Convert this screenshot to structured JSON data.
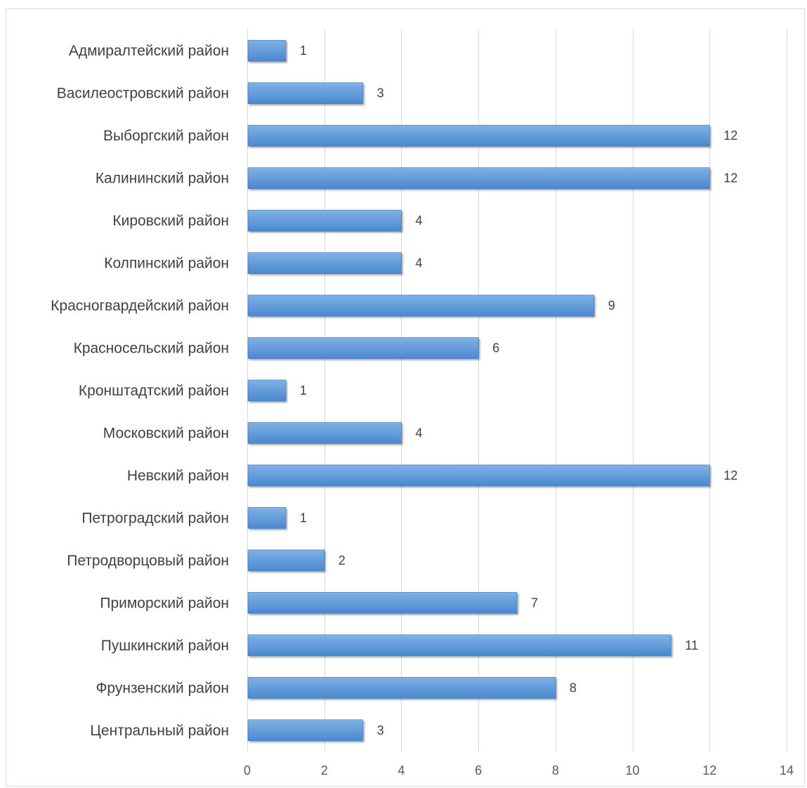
{
  "chart_data": {
    "type": "bar",
    "orientation": "horizontal",
    "categories": [
      "Адмиралтейский район",
      "Василеостровский район",
      "Выборгский район",
      "Калининский район",
      "Кировский район",
      "Колпинский район",
      "Красногвардейский район",
      "Красносельский район",
      "Кронштадтский район",
      "Московский район",
      "Невский район",
      "Петроградский район",
      "Петродворцовый район",
      "Приморский район",
      "Пушкинский район",
      "Фрунзенский район",
      "Центральный район"
    ],
    "values": [
      1,
      3,
      12,
      12,
      4,
      4,
      9,
      6,
      1,
      4,
      12,
      1,
      2,
      7,
      11,
      8,
      3
    ],
    "xlim": [
      0,
      14
    ],
    "xticks": [
      0,
      2,
      4,
      6,
      8,
      10,
      12,
      14
    ],
    "title": "",
    "xlabel": "",
    "ylabel": "",
    "grid": "vertical",
    "data_labels": true,
    "legend": "none",
    "colors": {
      "bar_top": "#7fb2e5",
      "bar_bottom": "#4a88cf",
      "bar_edge": "#3c78bd",
      "gridline": "#d9d9d9",
      "text": "#404040"
    }
  }
}
